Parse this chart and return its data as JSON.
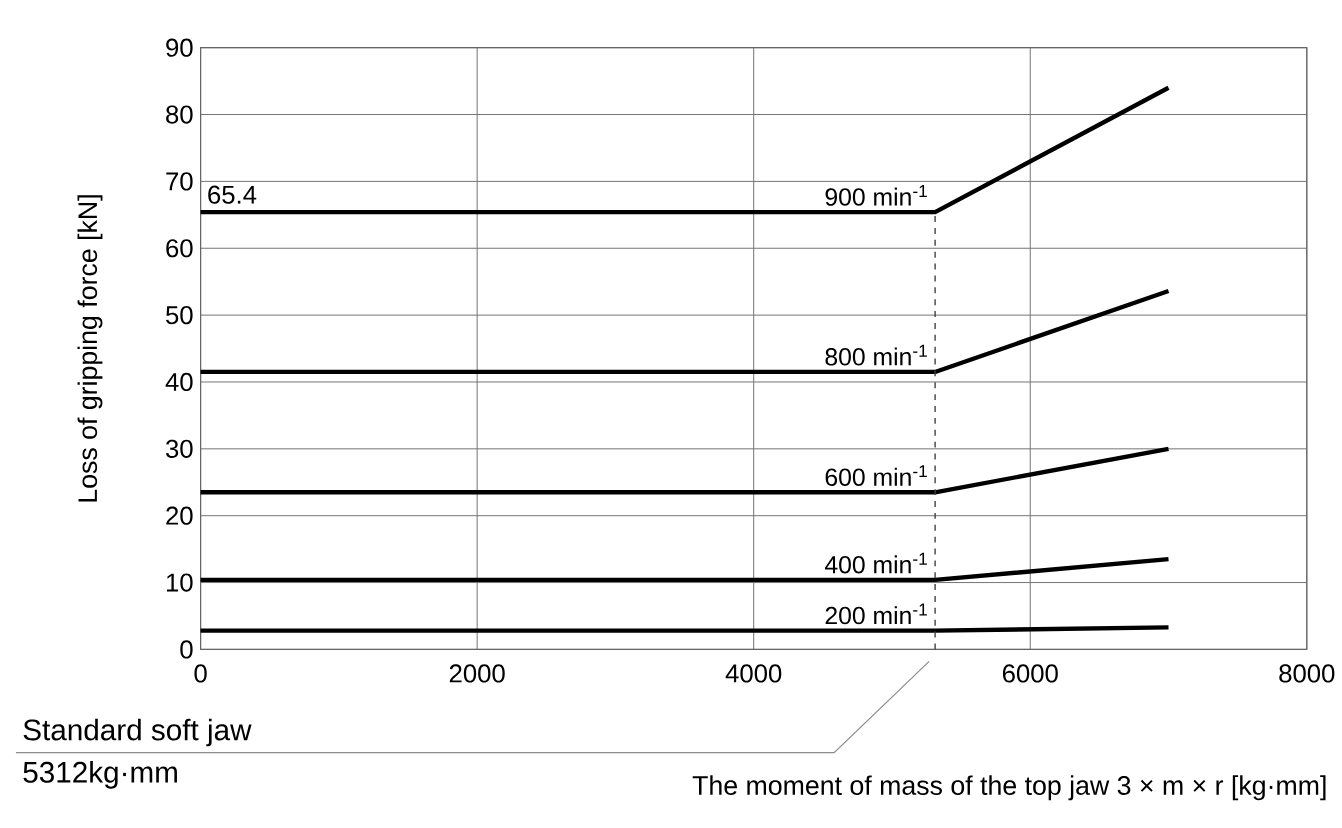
{
  "chart_data": {
    "type": "line",
    "xlabel": "The moment of mass of the top jaw 3 × m × r  [kg·mm]",
    "ylabel": "Loss of gripping force [kN]",
    "xlim": [
      0,
      8000
    ],
    "xticks": [
      0,
      2000,
      4000,
      6000,
      8000
    ],
    "ylim": [
      0,
      90
    ],
    "yticks": [
      0,
      10,
      20,
      30,
      40,
      50,
      60,
      70,
      80,
      90
    ],
    "grid": true,
    "series": [
      {
        "name": "900 min$^{-1}$",
        "color": "#000000",
        "x": [
          0,
          5312,
          7000
        ],
        "values": [
          65.4,
          65.4,
          84
        ]
      },
      {
        "name": "800 min$^{-1}$",
        "color": "#000000",
        "x": [
          0,
          5312,
          7000
        ],
        "values": [
          41.5,
          41.5,
          53.6
        ]
      },
      {
        "name": "600 min$^{-1}$",
        "color": "#000000",
        "x": [
          0,
          5312,
          7000
        ],
        "values": [
          23.5,
          23.5,
          30
        ]
      },
      {
        "name": "400 min$^{-1}$",
        "color": "#000000",
        "x": [
          0,
          5312,
          7000
        ],
        "values": [
          10.4,
          10.4,
          13.5
        ]
      },
      {
        "name": "200 min$^{-1}$",
        "color": "#000000",
        "x": [
          0,
          5312,
          7000
        ],
        "values": [
          2.8,
          2.8,
          3.3
        ]
      }
    ],
    "ref_lines": [
      {
        "axis": "x",
        "value": 5312,
        "label": "Standard soft jaw",
        "line_style": "dashed"
      }
    ],
    "annotations": [
      {
        "text": "65.4",
        "x": 0,
        "y": 65.4
      },
      "5312kg·mm"
    ]
  }
}
